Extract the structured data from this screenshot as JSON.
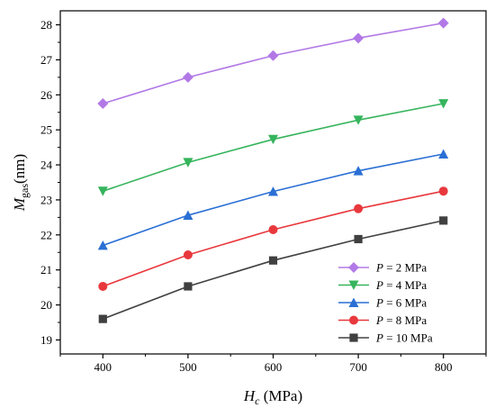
{
  "chart_data": {
    "type": "line",
    "x": [
      400,
      500,
      600,
      700,
      800
    ],
    "xlim": [
      350,
      850
    ],
    "ylim": [
      18.6,
      28.4
    ],
    "xticks": [
      400,
      500,
      600,
      700,
      800
    ],
    "yticks": [
      19,
      20,
      21,
      22,
      23,
      24,
      25,
      26,
      27,
      28
    ],
    "xlabel": {
      "main": "H",
      "sub": "c",
      "unit": " (MPa)"
    },
    "ylabel": {
      "main": "M",
      "sub": "gas",
      "unit": "(nm)"
    },
    "grid": false,
    "legend_position": "bottom-right",
    "series": [
      {
        "name": "P = 2 MPa",
        "prefix": "P",
        "suffix": " = 2 MPa",
        "color": "#b279e6",
        "marker": "diamond",
        "values": [
          25.75,
          26.5,
          27.12,
          27.62,
          28.05
        ]
      },
      {
        "name": "P = 4 MPa",
        "prefix": "P",
        "suffix": " = 4 MPa",
        "color": "#35b45c",
        "marker": "triangle-down",
        "values": [
          23.25,
          24.07,
          24.73,
          25.28,
          25.75
        ]
      },
      {
        "name": "P = 6 MPa",
        "prefix": "P",
        "suffix": " = 6 MPa",
        "color": "#2a6fd4",
        "marker": "triangle-up",
        "values": [
          21.7,
          22.56,
          23.24,
          23.83,
          24.31
        ]
      },
      {
        "name": "P = 8 MPa",
        "prefix": "P",
        "suffix": " = 8 MPa",
        "color": "#e8383d",
        "marker": "circle",
        "values": [
          20.53,
          21.43,
          22.15,
          22.75,
          23.25
        ]
      },
      {
        "name": "P = 10 MPa",
        "prefix": "P",
        "suffix": " = 10 MPa",
        "color": "#404040",
        "marker": "square",
        "values": [
          19.6,
          20.53,
          21.27,
          21.88,
          22.41
        ]
      }
    ]
  }
}
